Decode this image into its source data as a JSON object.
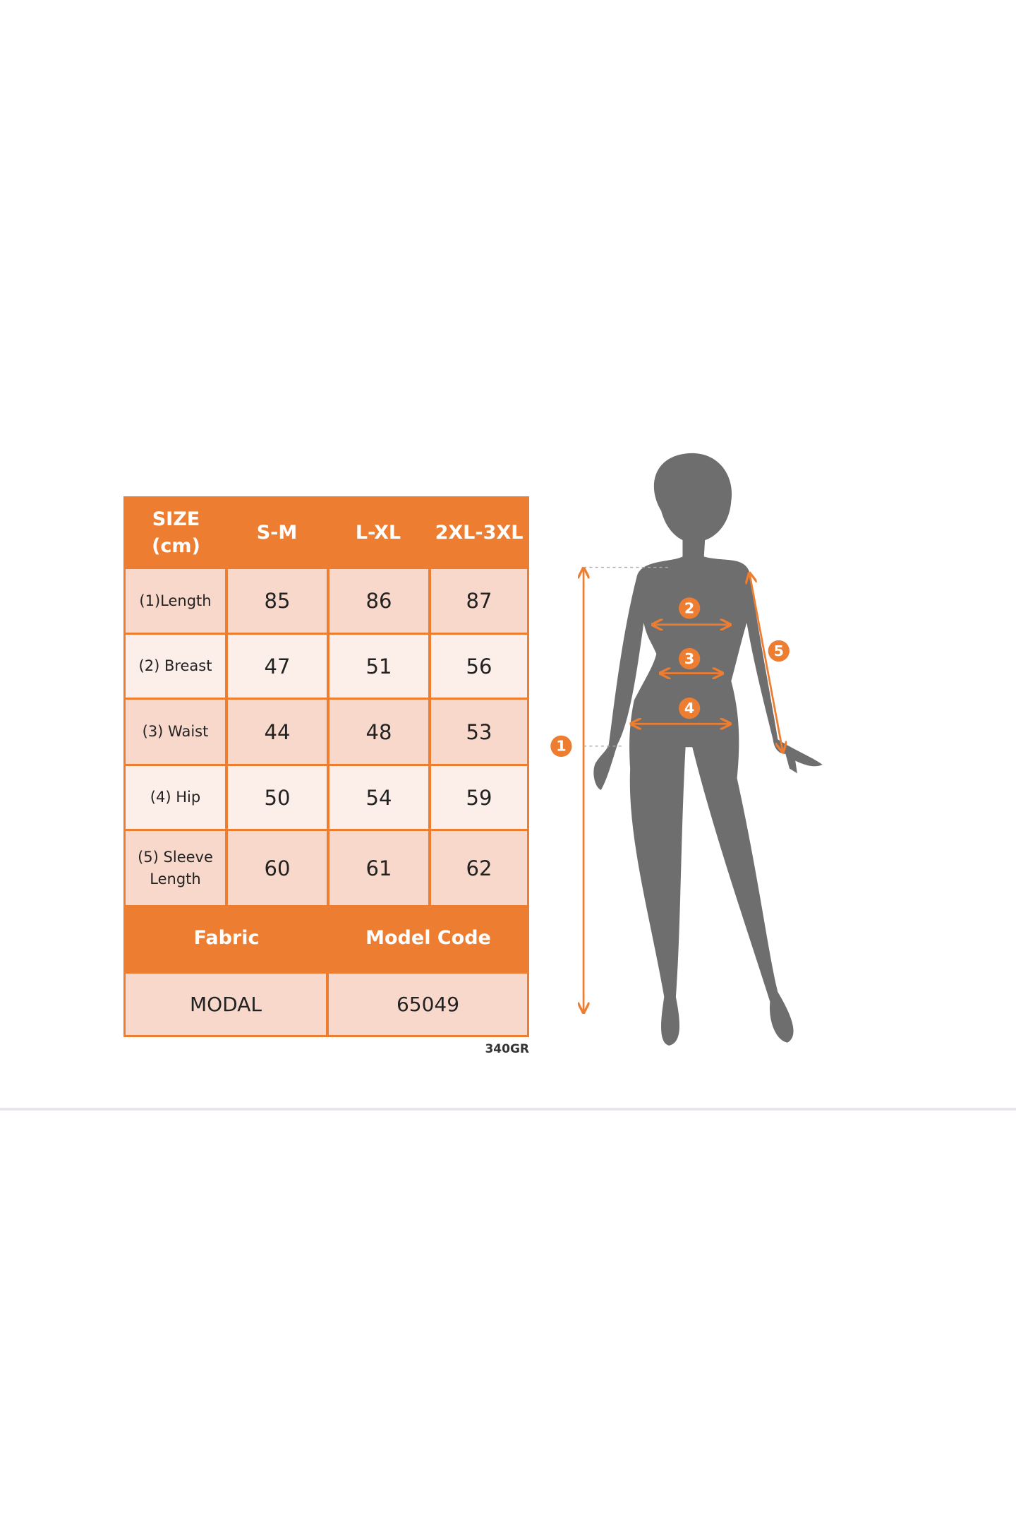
{
  "size_chart": {
    "header": {
      "size_label_line1": "SIZE",
      "size_label_line2": "(cm)",
      "sizes": [
        "S-M",
        "L-XL",
        "2XL-3XL"
      ]
    },
    "rows": [
      {
        "label": "(1)Length",
        "values": [
          "85",
          "86",
          "87"
        ]
      },
      {
        "label": "(2) Breast",
        "values": [
          "47",
          "51",
          "56"
        ]
      },
      {
        "label": "(3) Waist",
        "values": [
          "44",
          "48",
          "53"
        ]
      },
      {
        "label": "(4) Hip",
        "values": [
          "50",
          "54",
          "59"
        ]
      },
      {
        "label_line1": "(5) Sleeve",
        "label_line2": "Length",
        "values": [
          "60",
          "61",
          "62"
        ]
      }
    ],
    "footer_headers": {
      "fabric": "Fabric",
      "model_code": "Model Code"
    },
    "footer_values": {
      "fabric": "MODAL",
      "model_code": "65049"
    },
    "product_code": "340GR"
  },
  "figure": {
    "markers": [
      "1",
      "2",
      "3",
      "4",
      "5"
    ]
  },
  "colors": {
    "accent": "#ED7D31",
    "row_dark": "#F8D8CB",
    "row_light": "#FCEEE8",
    "silhouette": "#6E6E6E"
  }
}
